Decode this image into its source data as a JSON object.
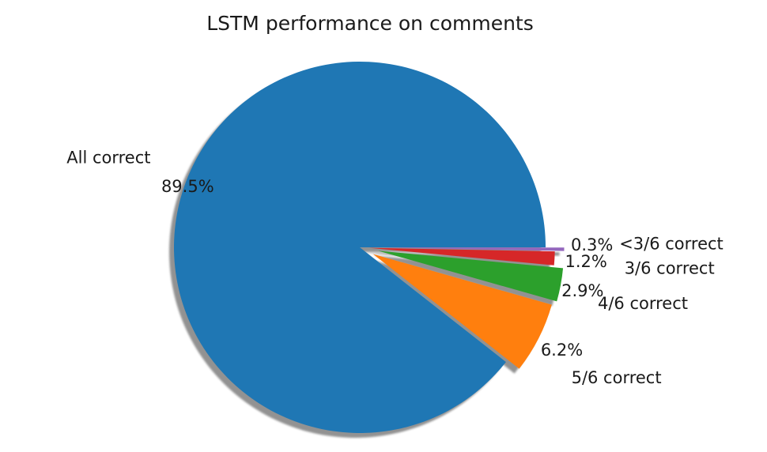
{
  "chart_data": {
    "type": "pie",
    "title": "LSTM performance on comments",
    "start_angle_deg": 0,
    "direction": "counterclockwise",
    "shadow": true,
    "legend": "none",
    "slices": [
      {
        "label": "All correct",
        "value": 89.5,
        "pct_label": "89.5%",
        "color": "#1f77b4",
        "explode": 0.0
      },
      {
        "label": "5/6 correct",
        "value": 6.2,
        "pct_label": "6.2%",
        "color": "#ff7f0e",
        "explode": 0.08
      },
      {
        "label": "4/6 correct",
        "value": 2.9,
        "pct_label": "2.9%",
        "color": "#2ca02c",
        "explode": 0.1
      },
      {
        "label": "3/6 correct",
        "value": 1.2,
        "pct_label": "1.2%",
        "color": "#d62728",
        "explode": 0.05
      },
      {
        "label": "<3/6 correct",
        "value": 0.3,
        "pct_label": "0.3%",
        "color": "#9467bd",
        "explode": 0.1
      }
    ]
  }
}
